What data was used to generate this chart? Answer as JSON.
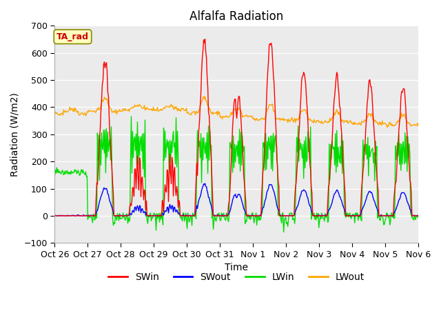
{
  "title": "Alfalfa Radiation",
  "ylabel": "Radiation (W/m2)",
  "xlabel": "Time",
  "ylim": [
    -100,
    700
  ],
  "yticks": [
    -100,
    0,
    100,
    200,
    300,
    400,
    500,
    600,
    700
  ],
  "xtick_labels": [
    "Oct 26",
    "Oct 27",
    "Oct 28",
    "Oct 29",
    "Oct 30",
    "Oct 31",
    "Nov 1",
    "Nov 2",
    "Nov 3",
    "Nov 4",
    "Nov 5",
    "Nov 6"
  ],
  "bg_color": "#e8e8e8",
  "plot_bg": "#ebebeb",
  "legend_label": "TA_rad",
  "legend_box_bg": "#ffffc0",
  "legend_box_border": "#808000",
  "series_colors": {
    "SWin": "#ff0000",
    "SWout": "#0000ff",
    "LWin": "#00dd00",
    "LWout": "#ffa500"
  },
  "n_days": 11,
  "pts_per_day": 48
}
